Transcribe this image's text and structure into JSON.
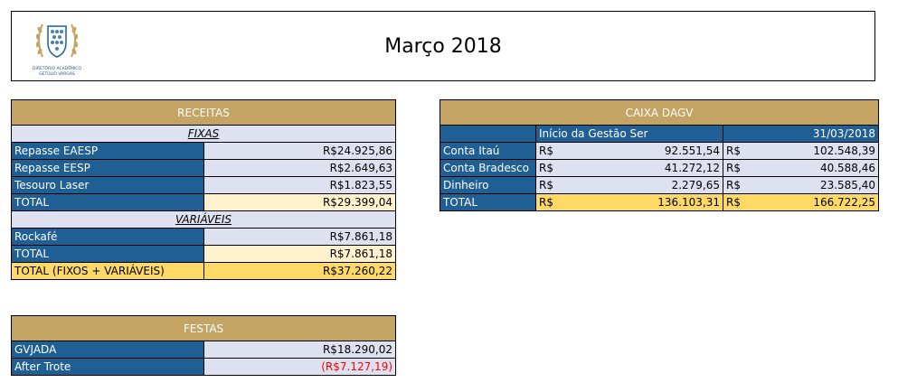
{
  "header": {
    "title": "Março 2018",
    "logo_line1": "DIRETÓRIO ACADÊMICO",
    "logo_line2": "GETULIO VARGAS"
  },
  "receitas": {
    "title": "RECEITAS",
    "fixas_label": "FIXAS",
    "fixas": [
      {
        "label": "Repasse EAESP",
        "value": "R$24.925,86"
      },
      {
        "label": "Repasse EESP",
        "value": "R$2.649,63"
      },
      {
        "label": "Tesouro Laser",
        "value": "R$1.823,55"
      }
    ],
    "fixas_total": {
      "label": "TOTAL",
      "value": "R$29.399,04"
    },
    "variaveis_label": "VARIÁVEIS",
    "variaveis": [
      {
        "label": "Rockafé",
        "value": "R$7.861,18"
      }
    ],
    "variaveis_total": {
      "label": "TOTAL",
      "value": "R$7.861,18"
    },
    "grand_total": {
      "label": "TOTAL (FIXOS + VARIÁVEIS)",
      "value": "R$37.260,22"
    }
  },
  "caixa": {
    "title": "CAIXA DAGV",
    "col1_header": "Início da Gestão Ser",
    "col2_header": "31/03/2018",
    "currency": "R$",
    "rows": [
      {
        "label": "Conta Itaú",
        "v1": "92.551,54",
        "v2": "102.548,39"
      },
      {
        "label": "Conta Bradesco",
        "v1": "41.272,12",
        "v2": "40.588,46"
      },
      {
        "label": "Dinheiro",
        "v1": "2.279,65",
        "v2": "23.585,40"
      }
    ],
    "total": {
      "label": "TOTAL",
      "v1": "136.103,31",
      "v2": "166.722,25"
    }
  },
  "festas": {
    "title": "FESTAS",
    "rows": [
      {
        "label": "GVJADA",
        "value": "R$18.290,02",
        "negative": false
      },
      {
        "label": "After Trote",
        "value": "(R$7.127,19)",
        "negative": true
      }
    ]
  },
  "colors": {
    "header_gold": "#c3a463",
    "label_blue": "#1f5f94",
    "value_lavender": "#dde1f0",
    "total_cream": "#fff2cc",
    "grand_total_gold": "#ffd966",
    "negative_red": "#ff0000"
  }
}
